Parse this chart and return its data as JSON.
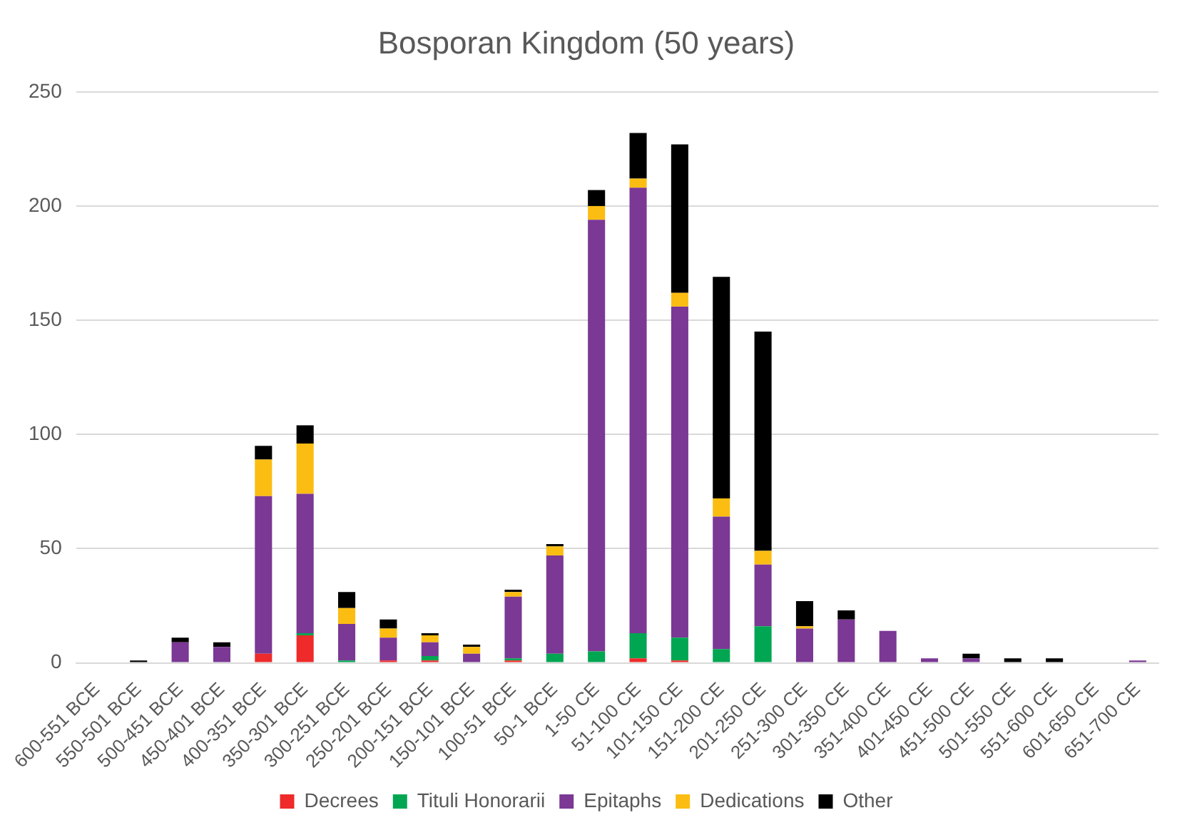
{
  "chart_data": {
    "type": "bar",
    "title": "Bosporan Kingdom (50 years)",
    "stacked": true,
    "grid": "y",
    "legend": "bottom",
    "categories": [
      "600-551 BCE",
      "550-501 BCE",
      "500-451 BCE",
      "450-401 BCE",
      "400-351 BCE",
      "350-301 BCE",
      "300-251 BCE",
      "250-201 BCE",
      "200-151 BCE",
      "150-101 BCE",
      "100-51 BCE",
      "50-1 BCE",
      "1-50 CE",
      "51-100 CE",
      "101-150 CE",
      "151-200 CE",
      "201-250 CE",
      "251-300 CE",
      "301-350 CE",
      "351-400 CE",
      "401-450 CE",
      "451-500 CE",
      "501-550 CE",
      "551-600 CE",
      "601-650 CE",
      "651-700 CE"
    ],
    "ylim": [
      0,
      250
    ],
    "yticks": [
      0,
      50,
      100,
      150,
      200,
      250
    ],
    "series": [
      {
        "name": "Decrees",
        "color": "#ee2a2a",
        "values": [
          0,
          0,
          0,
          0,
          4,
          12,
          0,
          1,
          1,
          0,
          1,
          0,
          0,
          2,
          1,
          0,
          0,
          0,
          0,
          0,
          0,
          0,
          0,
          0,
          0,
          0
        ]
      },
      {
        "name": "Tituli Honorarii",
        "color": "#00a651",
        "values": [
          0,
          0,
          0,
          0,
          0,
          1,
          1,
          0,
          2,
          0,
          1,
          4,
          5,
          11,
          10,
          6,
          16,
          0,
          0,
          0,
          0,
          0,
          0,
          0,
          0,
          0
        ]
      },
      {
        "name": "Epitaphs",
        "color": "#7b3894",
        "values": [
          0,
          0,
          9,
          7,
          69,
          61,
          16,
          10,
          6,
          4,
          27,
          43,
          189,
          195,
          145,
          58,
          27,
          15,
          19,
          14,
          2,
          2,
          0,
          0,
          0,
          1
        ]
      },
      {
        "name": "Dedications",
        "color": "#fbbd12",
        "values": [
          0,
          0,
          0,
          0,
          16,
          22,
          7,
          4,
          3,
          3,
          2,
          4,
          6,
          4,
          6,
          8,
          6,
          1,
          0,
          0,
          0,
          0,
          0,
          0,
          0,
          0
        ]
      },
      {
        "name": "Other",
        "color": "#000000",
        "values": [
          0,
          1,
          2,
          2,
          6,
          8,
          7,
          4,
          1,
          1,
          1,
          1,
          7,
          20,
          65,
          97,
          96,
          11,
          4,
          0,
          0,
          2,
          2,
          2,
          0,
          0
        ]
      }
    ]
  }
}
